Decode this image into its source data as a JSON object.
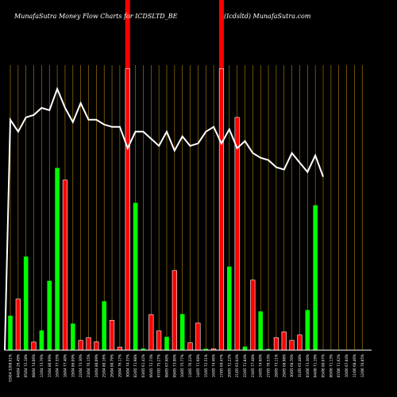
{
  "chart_data": {
    "type": "bar",
    "title_left": "MunafaSutra  Money Flow  Charts for ICDSLTD_BE",
    "title_right": "(Icdsltd) MunafaSutra.com",
    "colors": {
      "up": "#00ff00",
      "down": "#ff0000",
      "line": "#ffffff",
      "grid": "#b8860b",
      "background": "#000000",
      "baseline": "#ffffff"
    },
    "categories": [
      "03/04 3268.61%",
      "04/04 26.49%",
      "05/04 72.18%",
      "08/04 74.06%",
      "12/04 73.76%",
      "15/04 80.69%",
      "16/04 77.55%",
      "18/04 77.40%",
      "19/04 86.09%",
      "22/04 73.30%",
      "23/04 76.15%",
      "24/04 80.09%",
      "25/04 80.16%",
      "26/04 80.79%",
      "29/04 76.17%",
      "30/04 74.37%",
      "02/05 71.98%",
      "03/05 61.42%",
      "06/05 72.73%",
      "07/05 75.27%",
      "08/05 67.60%",
      "09/05 73.90%",
      "10/05 75.77%",
      "13/05 76.22%",
      "14/05 71.68%",
      "15/05 72.51%",
      "16/05 74.46%",
      "17/05 69.47%",
      "20/05 72.22%",
      "21/05 63.04%",
      "22/05 71.84%",
      "23/05 77.48%",
      "24/05 74.60%",
      "27/05 70.53%",
      "28/05 73.11%",
      "29/05 68.98%",
      "30/05 68.70%",
      "31/05 65.48%",
      "03/06 73.30%",
      "04/06 71.19%",
      "05/06 80.07%",
      "06/06 71.13%",
      "07/06 71.62%",
      "10/06 67.84%",
      "11/06 68.46%",
      "12/06 70.85%"
    ],
    "bar_colors": [
      "up",
      "down",
      "up",
      "down",
      "up",
      "up",
      "up",
      "down",
      "up",
      "down",
      "down",
      "down",
      "up",
      "down",
      "down",
      "down",
      "up",
      "up",
      "down",
      "down",
      "up",
      "down",
      "up",
      "down",
      "down",
      "up",
      "down",
      "down",
      "up",
      "down",
      "up",
      "down",
      "up",
      "up",
      "down",
      "down",
      "down",
      "down",
      "up",
      "up",
      "down",
      "up",
      "down",
      "up",
      "down",
      "up"
    ],
    "volumes": [
      14.5,
      21.5,
      39.4,
      3.4,
      8.3,
      29.2,
      76.7,
      71.6,
      11.2,
      4.1,
      5.3,
      3.5,
      20.6,
      12.6,
      1.3,
      118.5,
      62.0,
      0.7,
      15.0,
      8.1,
      5.6,
      33.5,
      15.2,
      3.1,
      11.4,
      0.6,
      0.6,
      118.5,
      35.2,
      98.0,
      1.5,
      29.5,
      16.3,
      0.5,
      5.3,
      7.7,
      4.1,
      6.4,
      16.9,
      61.0,
      0,
      0,
      0,
      0,
      0,
      0
    ],
    "money_flow_index": [
      97.0,
      92.0,
      98.0,
      99.0,
      102.0,
      101.0,
      110.0,
      102.0,
      96.0,
      104.0,
      97.0,
      97.0,
      95.0,
      94.0,
      94.0,
      85.0,
      92.0,
      92.0,
      89.0,
      86.0,
      92.0,
      84.0,
      90.0,
      86.0,
      87.0,
      92.0,
      94.0,
      87.0,
      93.0,
      85.0,
      88.0,
      83.0,
      81.0,
      80.0,
      77.0,
      76.0,
      83.0,
      79.0,
      75.0,
      82.0,
      73.0,
      0,
      0,
      0,
      0,
      0
    ],
    "ylim": [
      0,
      120
    ],
    "highlight_bars": [
      15,
      27
    ]
  }
}
